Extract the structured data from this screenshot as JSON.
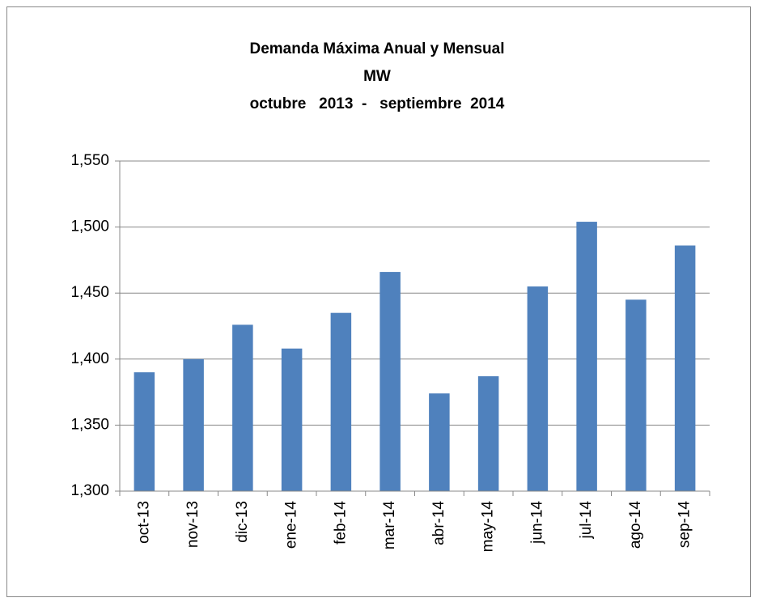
{
  "chart_data": {
    "type": "bar",
    "title": [
      "Demanda Máxima Anual y Mensual",
      "MW",
      "octubre   2013  -   septiembre  2014"
    ],
    "categories": [
      "oct-13",
      "nov-13",
      "dic-13",
      "ene-14",
      "feb-14",
      "mar-14",
      "abr-14",
      "may-14",
      "jun-14",
      "jul-14",
      "ago-14",
      "sep-14"
    ],
    "values": [
      1390,
      1400,
      1426,
      1408,
      1435,
      1466,
      1374,
      1387,
      1455,
      1504,
      1445,
      1486
    ],
    "color": "#4f81bd",
    "ylim": [
      1300,
      1550
    ],
    "yticks": [
      {
        "value": 1300,
        "label": "1,300"
      },
      {
        "value": 1350,
        "label": "1,350"
      },
      {
        "value": 1400,
        "label": "1,400"
      },
      {
        "value": 1450,
        "label": "1,450"
      },
      {
        "value": 1500,
        "label": "1,500"
      },
      {
        "value": 1550,
        "label": "1,550"
      }
    ],
    "grid": true
  }
}
